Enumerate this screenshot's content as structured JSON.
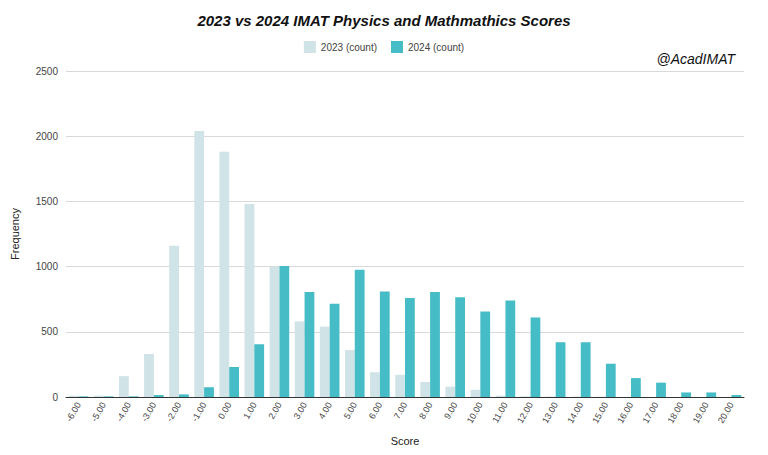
{
  "chart_data": {
    "type": "bar",
    "title": "2023 vs 2024 IMAT Physics and Mathmathics Scores",
    "annotations": [
      "@AcadIMAT"
    ],
    "x_label": "Score",
    "y_label": "Frequency",
    "categories": [
      "-6.00",
      "-5.00",
      "-4.00",
      "-3.00",
      "-2.00",
      "-1.00",
      "0.00",
      "1.00",
      "2.00",
      "3.00",
      "4.00",
      "5.00",
      "6.00",
      "7.00",
      "8.00",
      "9.00",
      "10.00",
      "11.00",
      "12.00",
      "13.00",
      "14.00",
      "15.00",
      "16.00",
      "17.00",
      "18.00",
      "19.00",
      "20.00"
    ],
    "series": [
      {
        "name": "2023 (count)",
        "color": "#d0e3e6",
        "values": [
          10,
          10,
          160,
          330,
          1160,
          2040,
          1880,
          1480,
          1000,
          580,
          540,
          360,
          190,
          170,
          115,
          80,
          55,
          10,
          5,
          3,
          3,
          2,
          0,
          0,
          0,
          0,
          0
        ]
      },
      {
        "name": "2024 (count)",
        "color": "#46bdc6",
        "values": [
          5,
          5,
          5,
          15,
          20,
          75,
          230,
          405,
          1005,
          805,
          715,
          975,
          810,
          760,
          805,
          765,
          655,
          740,
          610,
          420,
          420,
          255,
          145,
          110,
          35,
          35,
          15
        ]
      }
    ],
    "ylim": [
      0,
      2500
    ],
    "yticks": [
      0,
      500,
      1000,
      1500,
      2000,
      2500
    ],
    "grid": true,
    "legend": "top"
  }
}
